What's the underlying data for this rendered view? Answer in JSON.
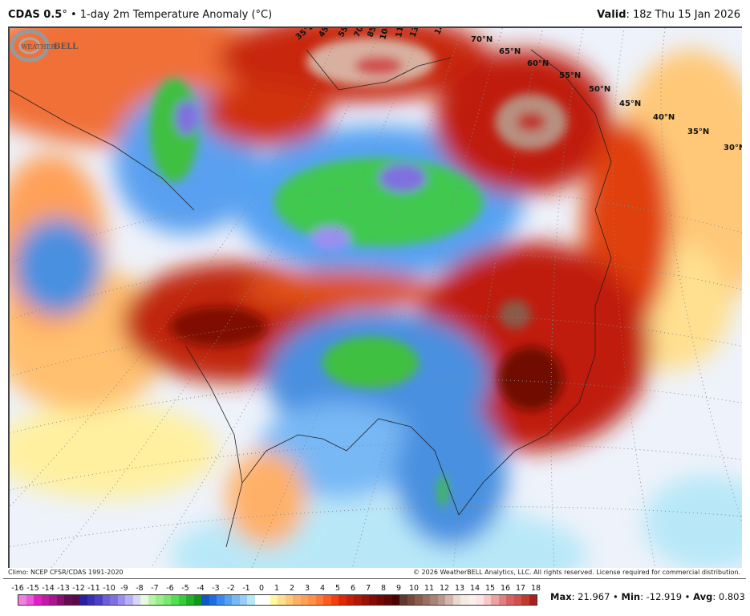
{
  "header": {
    "model": "CDAS 0.5",
    "model_degree": "°",
    "separator": "•",
    "title": "1-day 2m Temperature Anomaly (°C)",
    "valid_label": "Valid",
    "valid_value": ": 18z Thu 15 Jan 2026"
  },
  "map": {
    "lon_labels": [
      "35°E",
      "45°E",
      "55°E",
      "70°E",
      "85°E",
      "100°E",
      "115°E",
      "130°E",
      "140°E"
    ],
    "lat_labels": [
      "70°N",
      "65°N",
      "60°N",
      "55°N",
      "50°N",
      "45°N",
      "40°N",
      "35°N",
      "30°N"
    ],
    "logo_text": "WeatherBELL",
    "colors": {
      "cold": "#4a90e0",
      "very_cold": "#40c850",
      "warm": "#e04010",
      "very_warm": "#a01808",
      "ocean": "#eef2fa"
    }
  },
  "footer": {
    "climo": "Climo: NCEP CFSR/CDAS 1991-2020",
    "copyright": "© 2026 WeatherBELL Analytics, LLC. All rights reserved. License required for commercial distribution."
  },
  "colorbar": {
    "labels": [
      "-16",
      "-15",
      "-14",
      "-13",
      "-12",
      "-11",
      "-10",
      "-9",
      "-8",
      "-7",
      "-6",
      "-5",
      "-4",
      "-3",
      "-2",
      "-1",
      "0",
      "1",
      "2",
      "3",
      "4",
      "5",
      "6",
      "7",
      "8",
      "9",
      "10",
      "11",
      "12",
      "13",
      "14",
      "15",
      "16",
      "17",
      "18"
    ],
    "colors": [
      "#f07fe0",
      "#ee55d8",
      "#e01fc8",
      "#c41aa8",
      "#a8158f",
      "#861070",
      "#650a55",
      "#5a0a4a",
      "#2a1fa0",
      "#3a2fb4",
      "#4a3fc8",
      "#6a5fd8",
      "#7f70e0",
      "#9a8ff0",
      "#b8b0f5",
      "#d8d4fa",
      "#e6fae0",
      "#b8f5a8",
      "#98ee88",
      "#78e870",
      "#50e050",
      "#38cc3a",
      "#20b02a",
      "#109818",
      "#1058c8",
      "#1e6de0",
      "#3888ee",
      "#56a2f2",
      "#78b8f5",
      "#98cdf8",
      "#b8e8f8",
      "#ffffff",
      "#ffffff",
      "#fff8a0",
      "#ffe090",
      "#ffc878",
      "#ffb068",
      "#ffa058",
      "#ff9048",
      "#ff7838",
      "#ff5a20",
      "#f04010",
      "#e02808",
      "#c81e08",
      "#b01808",
      "#981208",
      "#800c04",
      "#700804",
      "#600404",
      "#4a0404",
      "#603830",
      "#784838",
      "#8a5a4a",
      "#9a6e60",
      "#aa8276",
      "#ba9890",
      "#d4b4ac",
      "#e8d8d0",
      "#f4ece0",
      "#faf0ec",
      "#fce4e4",
      "#f8c8c8",
      "#f0a0a0",
      "#e08080",
      "#d86060",
      "#d05050",
      "#c03a30",
      "#a82020"
    ]
  },
  "stats": {
    "max_label": "Max",
    "max_value": ": 21.967",
    "min_label": "Min",
    "min_value": ": -12.919",
    "avg_label": "Avg",
    "avg_value": ": 0.803",
    "sep": " • "
  }
}
